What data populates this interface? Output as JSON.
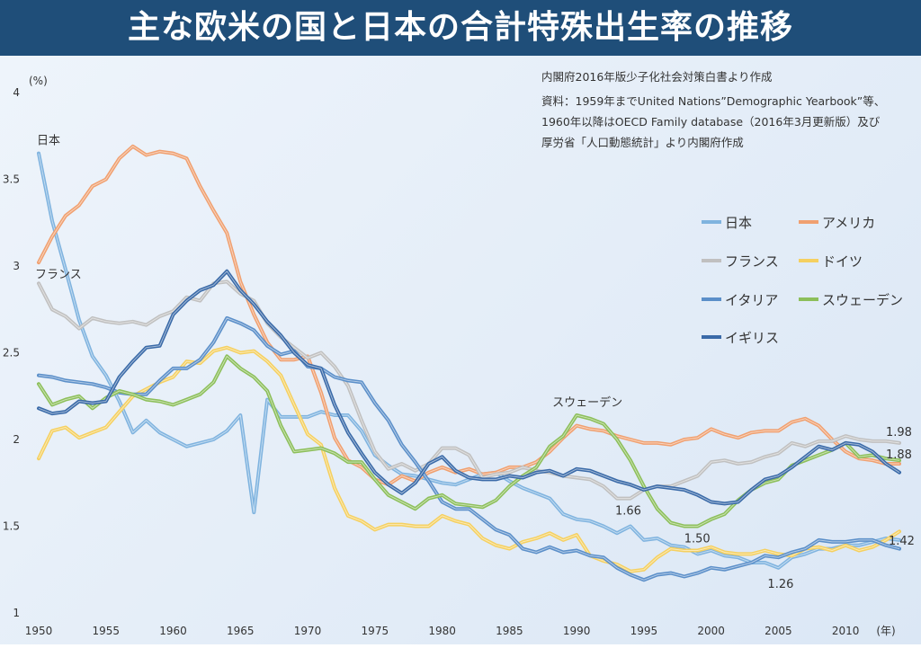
{
  "title": "主な欧米の国と日本の合計特殊出生率の推移",
  "source_lines": [
    "内閣府2016年版少子化社会対策白書より作成",
    "資料：1959年までUnited Nations”Demographic Yearbook”等、",
    "1960年以降はOECD Family database（2016年3月更新版）及び",
    "厚労省「人口動態統計」より内閣府作成"
  ],
  "chart_data": {
    "type": "line",
    "ylabel": "(%)",
    "xlabel": "(年)",
    "ylim": [
      1,
      4
    ],
    "xlim": [
      1950,
      2014
    ],
    "yticks": [
      "1",
      "1.5",
      "2",
      "2.5",
      "3",
      "3.5",
      "4"
    ],
    "xticks": [
      "1950",
      "1955",
      "1960",
      "1965",
      "1970",
      "1975",
      "1980",
      "1985",
      "1990",
      "1995",
      "2000",
      "2005",
      "2010"
    ],
    "grid": false,
    "legend_position": "right",
    "x": [
      1950,
      1951,
      1952,
      1953,
      1954,
      1955,
      1956,
      1957,
      1958,
      1959,
      1960,
      1961,
      1962,
      1963,
      1964,
      1965,
      1966,
      1967,
      1968,
      1969,
      1970,
      1971,
      1972,
      1973,
      1974,
      1975,
      1976,
      1977,
      1978,
      1979,
      1980,
      1981,
      1982,
      1983,
      1984,
      1985,
      1986,
      1987,
      1988,
      1989,
      1990,
      1991,
      1992,
      1993,
      1994,
      1995,
      1996,
      1997,
      1998,
      1999,
      2000,
      2001,
      2002,
      2003,
      2004,
      2005,
      2006,
      2007,
      2008,
      2009,
      2010,
      2011,
      2012,
      2013,
      2014
    ],
    "series": [
      {
        "name": "日本",
        "color": "#7fb3df",
        "values": [
          3.65,
          3.26,
          2.98,
          2.69,
          2.48,
          2.37,
          2.22,
          2.04,
          2.11,
          2.04,
          2.0,
          1.96,
          1.98,
          2.0,
          2.05,
          2.14,
          1.58,
          2.23,
          2.13,
          2.13,
          2.13,
          2.16,
          2.14,
          2.14,
          2.05,
          1.91,
          1.85,
          1.8,
          1.79,
          1.77,
          1.75,
          1.74,
          1.77,
          1.8,
          1.81,
          1.76,
          1.72,
          1.69,
          1.66,
          1.57,
          1.54,
          1.53,
          1.5,
          1.46,
          1.5,
          1.42,
          1.43,
          1.39,
          1.38,
          1.34,
          1.36,
          1.33,
          1.32,
          1.29,
          1.29,
          1.26,
          1.32,
          1.34,
          1.37,
          1.37,
          1.39,
          1.39,
          1.41,
          1.43,
          1.42
        ]
      },
      {
        "name": "アメリカ",
        "color": "#f0a070",
        "values": [
          3.02,
          3.17,
          3.29,
          3.35,
          3.46,
          3.5,
          3.62,
          3.69,
          3.64,
          3.66,
          3.65,
          3.62,
          3.46,
          3.32,
          3.19,
          2.91,
          2.72,
          2.56,
          2.46,
          2.46,
          2.48,
          2.27,
          2.01,
          1.88,
          1.84,
          1.77,
          1.74,
          1.79,
          1.76,
          1.81,
          1.84,
          1.81,
          1.83,
          1.8,
          1.81,
          1.84,
          1.84,
          1.87,
          1.93,
          2.01,
          2.08,
          2.06,
          2.05,
          2.02,
          2.0,
          1.98,
          1.98,
          1.97,
          2.0,
          2.01,
          2.06,
          2.03,
          2.01,
          2.04,
          2.05,
          2.05,
          2.1,
          2.12,
          2.08,
          2.0,
          1.93,
          1.89,
          1.88,
          1.86,
          1.86
        ]
      },
      {
        "name": "フランス",
        "color": "#c0c0c0",
        "values": [
          2.9,
          2.75,
          2.71,
          2.64,
          2.7,
          2.68,
          2.67,
          2.68,
          2.66,
          2.71,
          2.74,
          2.82,
          2.8,
          2.9,
          2.91,
          2.84,
          2.8,
          2.67,
          2.59,
          2.53,
          2.47,
          2.5,
          2.42,
          2.31,
          2.11,
          1.93,
          1.83,
          1.86,
          1.82,
          1.86,
          1.95,
          1.95,
          1.91,
          1.78,
          1.8,
          1.81,
          1.84,
          1.82,
          1.81,
          1.79,
          1.78,
          1.77,
          1.73,
          1.66,
          1.66,
          1.71,
          1.73,
          1.73,
          1.76,
          1.79,
          1.87,
          1.88,
          1.86,
          1.87,
          1.9,
          1.92,
          1.98,
          1.96,
          1.99,
          1.99,
          2.02,
          2.0,
          1.99,
          1.99,
          1.98
        ]
      },
      {
        "name": "ドイツ",
        "color": "#f5d060",
        "values": [
          1.89,
          2.05,
          2.07,
          2.01,
          2.04,
          2.07,
          2.16,
          2.25,
          2.29,
          2.33,
          2.36,
          2.45,
          2.44,
          2.51,
          2.53,
          2.5,
          2.51,
          2.45,
          2.37,
          2.2,
          2.03,
          1.97,
          1.72,
          1.56,
          1.53,
          1.48,
          1.51,
          1.51,
          1.5,
          1.5,
          1.56,
          1.53,
          1.51,
          1.43,
          1.39,
          1.37,
          1.41,
          1.43,
          1.46,
          1.42,
          1.45,
          1.33,
          1.3,
          1.28,
          1.24,
          1.25,
          1.32,
          1.37,
          1.36,
          1.36,
          1.38,
          1.35,
          1.34,
          1.34,
          1.36,
          1.34,
          1.33,
          1.37,
          1.38,
          1.36,
          1.39,
          1.36,
          1.38,
          1.42,
          1.47
        ]
      },
      {
        "name": "イタリア",
        "color": "#5b8fc9",
        "values": [
          2.37,
          2.36,
          2.34,
          2.33,
          2.32,
          2.3,
          2.27,
          2.26,
          2.26,
          2.34,
          2.41,
          2.41,
          2.46,
          2.56,
          2.7,
          2.67,
          2.63,
          2.54,
          2.49,
          2.51,
          2.42,
          2.41,
          2.36,
          2.34,
          2.33,
          2.21,
          2.11,
          1.97,
          1.87,
          1.76,
          1.64,
          1.6,
          1.6,
          1.54,
          1.48,
          1.45,
          1.37,
          1.35,
          1.38,
          1.35,
          1.36,
          1.33,
          1.32,
          1.26,
          1.22,
          1.19,
          1.22,
          1.23,
          1.21,
          1.23,
          1.26,
          1.25,
          1.27,
          1.29,
          1.33,
          1.32,
          1.35,
          1.37,
          1.42,
          1.41,
          1.41,
          1.42,
          1.42,
          1.39,
          1.37
        ]
      },
      {
        "name": "スウェーデン",
        "color": "#8cbf5a",
        "values": [
          2.32,
          2.2,
          2.23,
          2.25,
          2.18,
          2.24,
          2.28,
          2.26,
          2.23,
          2.22,
          2.2,
          2.23,
          2.26,
          2.33,
          2.48,
          2.41,
          2.36,
          2.28,
          2.08,
          1.93,
          1.94,
          1.95,
          1.92,
          1.87,
          1.87,
          1.77,
          1.68,
          1.64,
          1.6,
          1.66,
          1.68,
          1.63,
          1.62,
          1.61,
          1.65,
          1.73,
          1.79,
          1.84,
          1.96,
          2.02,
          2.14,
          2.12,
          2.09,
          2.0,
          1.88,
          1.73,
          1.6,
          1.52,
          1.5,
          1.5,
          1.54,
          1.57,
          1.65,
          1.71,
          1.75,
          1.77,
          1.85,
          1.88,
          1.91,
          1.94,
          1.98,
          1.9,
          1.91,
          1.89,
          1.88
        ]
      },
      {
        "name": "イギリス",
        "color": "#3a6aa8",
        "values": [
          2.18,
          2.15,
          2.16,
          2.22,
          2.21,
          2.22,
          2.36,
          2.45,
          2.53,
          2.54,
          2.72,
          2.8,
          2.86,
          2.89,
          2.97,
          2.86,
          2.78,
          2.68,
          2.6,
          2.5,
          2.43,
          2.41,
          2.2,
          2.04,
          1.92,
          1.81,
          1.74,
          1.69,
          1.75,
          1.86,
          1.9,
          1.82,
          1.78,
          1.77,
          1.77,
          1.79,
          1.78,
          1.81,
          1.82,
          1.79,
          1.83,
          1.82,
          1.79,
          1.76,
          1.74,
          1.71,
          1.73,
          1.72,
          1.71,
          1.68,
          1.64,
          1.63,
          1.64,
          1.71,
          1.77,
          1.79,
          1.84,
          1.9,
          1.96,
          1.94,
          1.98,
          1.97,
          1.93,
          1.86,
          1.81
        ]
      }
    ],
    "annotations": [
      {
        "text": "日本",
        "x": 1950,
        "y": 3.65
      },
      {
        "text": "フランス",
        "x": 1950,
        "y": 2.9
      },
      {
        "text": "スウェーデン",
        "x": 1990,
        "y": 2.14
      },
      {
        "text": "1.66",
        "x": 1993,
        "y": 1.66
      },
      {
        "text": "1.50",
        "x": 1999,
        "y": 1.5
      },
      {
        "text": "1.26",
        "x": 2005,
        "y": 1.26
      },
      {
        "text": "1.98",
        "x": 2014,
        "y": 1.98
      },
      {
        "text": "1.88",
        "x": 2014,
        "y": 1.88
      },
      {
        "text": "1.42",
        "x": 2014,
        "y": 1.42
      }
    ]
  }
}
